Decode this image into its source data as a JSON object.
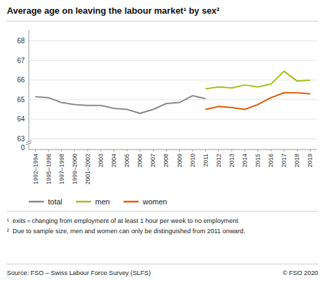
{
  "chart_data": {
    "type": "line",
    "title": "Average age on leaving the labour market¹ by sex²",
    "categories": [
      "1992–1994",
      "1995–1996",
      "1997–1998",
      "1999–2000",
      "2001–2002",
      "2003",
      "2004",
      "2005",
      "2006",
      "2007",
      "2008",
      "2009",
      "2010",
      "2011",
      "2012",
      "2013",
      "2014",
      "2015",
      "2016",
      "2017",
      "2018",
      "2019"
    ],
    "series": [
      {
        "name": "total",
        "color": "#888888",
        "values": [
          65.15,
          65.1,
          64.85,
          64.75,
          64.7,
          64.7,
          64.55,
          64.5,
          64.3,
          64.5,
          64.8,
          64.85,
          65.2,
          65.05,
          null,
          null,
          null,
          null,
          null,
          null,
          null,
          null
        ]
      },
      {
        "name": "men",
        "color": "#9dc219",
        "values": [
          null,
          null,
          null,
          null,
          null,
          null,
          null,
          null,
          null,
          null,
          null,
          null,
          null,
          65.55,
          65.65,
          65.6,
          65.75,
          65.65,
          65.8,
          66.45,
          65.95,
          66.0
        ]
      },
      {
        "name": "women",
        "color": "#e05a00",
        "values": [
          null,
          null,
          null,
          null,
          null,
          null,
          null,
          null,
          null,
          null,
          null,
          null,
          null,
          64.5,
          64.65,
          64.6,
          64.5,
          64.75,
          65.1,
          65.35,
          65.35,
          65.3
        ]
      }
    ],
    "ylim": [
      62.45,
      68.55
    ],
    "yticks": [
      63,
      64,
      65,
      66,
      67,
      68
    ],
    "annotations": [
      {
        "text": "0"
      }
    ],
    "footnotes": [
      "¹  exits = changing from employment of at least 1 hour per week to no employment",
      "²  Due to sample size, men and women can only be distinguished from 2011 onward."
    ],
    "source": "Source: FSO – Swiss Labour Force Survey (SLFS)",
    "copyright": "© FSO 2020",
    "grid": true,
    "legend": "bottom"
  }
}
